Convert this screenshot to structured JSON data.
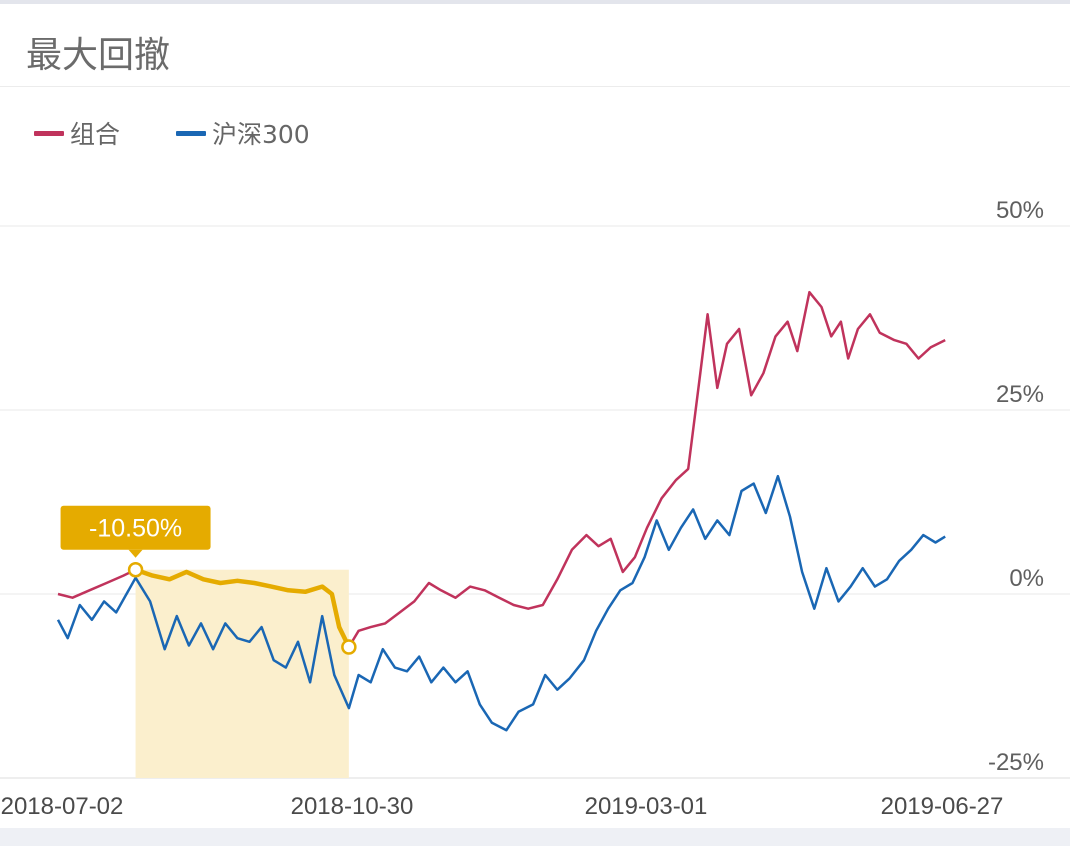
{
  "header": {
    "title": "最大回撤"
  },
  "chart_data": {
    "type": "line",
    "title": "",
    "xlabel": "",
    "ylabel": "",
    "legend_position": "top-left",
    "grid": true,
    "x_ticks": [
      "2018-07-02",
      "2018-10-30",
      "2019-03-01",
      "2019-06-27"
    ],
    "x_range": [
      "2018-07-02",
      "2019-07-05"
    ],
    "y_ticks": [
      {
        "value": 50,
        "label": "50%"
      },
      {
        "value": 25,
        "label": "25%"
      },
      {
        "value": 0,
        "label": "0%"
      },
      {
        "value": -25,
        "label": "-25%"
      }
    ],
    "ylim": [
      -25,
      50
    ],
    "series": [
      {
        "name": "组合",
        "color": "#c0335c",
        "points": [
          [
            "2018-07-02",
            0
          ],
          [
            "2018-07-08",
            -0.5
          ],
          [
            "2018-07-15",
            0.5
          ],
          [
            "2018-07-22",
            1.5
          ],
          [
            "2018-07-29",
            2.5
          ],
          [
            "2018-08-03",
            3.3
          ],
          [
            "2018-08-10",
            2.5
          ],
          [
            "2018-08-17",
            2.0
          ],
          [
            "2018-08-24",
            3.0
          ],
          [
            "2018-08-31",
            2.0
          ],
          [
            "2018-09-07",
            1.5
          ],
          [
            "2018-09-14",
            1.8
          ],
          [
            "2018-09-21",
            1.5
          ],
          [
            "2018-09-28",
            1.0
          ],
          [
            "2018-10-05",
            0.5
          ],
          [
            "2018-10-12",
            0.3
          ],
          [
            "2018-10-19",
            1.0
          ],
          [
            "2018-10-23",
            0
          ],
          [
            "2018-10-26",
            -4.5
          ],
          [
            "2018-10-30",
            -7.2
          ],
          [
            "2018-11-03",
            -5
          ],
          [
            "2018-11-08",
            -4.5
          ],
          [
            "2018-11-14",
            -4.0
          ],
          [
            "2018-11-20",
            -2.5
          ],
          [
            "2018-11-26",
            -1.0
          ],
          [
            "2018-12-02",
            1.5
          ],
          [
            "2018-12-07",
            0.5
          ],
          [
            "2018-12-13",
            -0.5
          ],
          [
            "2018-12-19",
            1.0
          ],
          [
            "2018-12-25",
            0.5
          ],
          [
            "2018-12-31",
            -0.5
          ],
          [
            "2019-01-06",
            -1.5
          ],
          [
            "2019-01-12",
            -2.0
          ],
          [
            "2019-01-18",
            -1.5
          ],
          [
            "2019-01-24",
            2.0
          ],
          [
            "2019-01-30",
            6.0
          ],
          [
            "2019-02-05",
            8.0
          ],
          [
            "2019-02-10",
            6.5
          ],
          [
            "2019-02-15",
            7.5
          ],
          [
            "2019-02-20",
            3.0
          ],
          [
            "2019-02-25",
            5.0
          ],
          [
            "2019-03-02",
            9.0
          ],
          [
            "2019-03-08",
            13.0
          ],
          [
            "2019-03-14",
            15.5
          ],
          [
            "2019-03-19",
            17.0
          ],
          [
            "2019-03-24",
            30.0
          ],
          [
            "2019-03-27",
            38.0
          ],
          [
            "2019-03-31",
            28.0
          ],
          [
            "2019-04-04",
            34.0
          ],
          [
            "2019-04-09",
            36.0
          ],
          [
            "2019-04-14",
            27.0
          ],
          [
            "2019-04-19",
            30.0
          ],
          [
            "2019-04-24",
            35.0
          ],
          [
            "2019-04-29",
            37.0
          ],
          [
            "2019-05-03",
            33.0
          ],
          [
            "2019-05-08",
            41.0
          ],
          [
            "2019-05-13",
            39.0
          ],
          [
            "2019-05-17",
            35.0
          ],
          [
            "2019-05-21",
            37.0
          ],
          [
            "2019-05-24",
            32.0
          ],
          [
            "2019-05-28",
            36.0
          ],
          [
            "2019-06-02",
            38.0
          ],
          [
            "2019-06-06",
            35.5
          ],
          [
            "2019-06-12",
            34.5
          ],
          [
            "2019-06-17",
            34.0
          ],
          [
            "2019-06-22",
            32.0
          ],
          [
            "2019-06-27",
            33.5
          ],
          [
            "2019-07-03",
            34.5
          ]
        ]
      },
      {
        "name": "沪深300",
        "color": "#1a67b4",
        "points": [
          [
            "2018-07-02",
            -3.5
          ],
          [
            "2018-07-06",
            -6.0
          ],
          [
            "2018-07-11",
            -1.5
          ],
          [
            "2018-07-16",
            -3.5
          ],
          [
            "2018-07-21",
            -1.0
          ],
          [
            "2018-07-26",
            -2.5
          ],
          [
            "2018-08-03",
            2.2
          ],
          [
            "2018-08-09",
            -1.0
          ],
          [
            "2018-08-15",
            -7.5
          ],
          [
            "2018-08-20",
            -3.0
          ],
          [
            "2018-08-25",
            -7.0
          ],
          [
            "2018-08-30",
            -4.0
          ],
          [
            "2018-09-04",
            -7.5
          ],
          [
            "2018-09-09",
            -4.0
          ],
          [
            "2018-09-14",
            -6.0
          ],
          [
            "2018-09-19",
            -6.5
          ],
          [
            "2018-09-24",
            -4.5
          ],
          [
            "2018-09-29",
            -9.0
          ],
          [
            "2018-10-04",
            -10.0
          ],
          [
            "2018-10-09",
            -6.5
          ],
          [
            "2018-10-14",
            -12.0
          ],
          [
            "2018-10-19",
            -3.0
          ],
          [
            "2018-10-24",
            -11.0
          ],
          [
            "2018-10-30",
            -15.5
          ],
          [
            "2018-11-03",
            -11.0
          ],
          [
            "2018-11-08",
            -12.0
          ],
          [
            "2018-11-13",
            -7.5
          ],
          [
            "2018-11-18",
            -10.0
          ],
          [
            "2018-11-23",
            -10.5
          ],
          [
            "2018-11-28",
            -8.5
          ],
          [
            "2018-12-03",
            -12.0
          ],
          [
            "2018-12-08",
            -10.0
          ],
          [
            "2018-12-13",
            -12.0
          ],
          [
            "2018-12-18",
            -10.5
          ],
          [
            "2018-12-23",
            -15.0
          ],
          [
            "2018-12-28",
            -17.5
          ],
          [
            "2019-01-03",
            -18.5
          ],
          [
            "2019-01-08",
            -16.0
          ],
          [
            "2019-01-14",
            -15.0
          ],
          [
            "2019-01-19",
            -11.0
          ],
          [
            "2019-01-24",
            -13.0
          ],
          [
            "2019-01-29",
            -11.5
          ],
          [
            "2019-02-04",
            -9.0
          ],
          [
            "2019-02-09",
            -5.0
          ],
          [
            "2019-02-14",
            -2.0
          ],
          [
            "2019-02-19",
            0.5
          ],
          [
            "2019-02-24",
            1.5
          ],
          [
            "2019-03-01",
            5.0
          ],
          [
            "2019-03-06",
            10.0
          ],
          [
            "2019-03-11",
            6.0
          ],
          [
            "2019-03-16",
            9.0
          ],
          [
            "2019-03-21",
            11.5
          ],
          [
            "2019-03-26",
            7.5
          ],
          [
            "2019-03-31",
            10.0
          ],
          [
            "2019-04-05",
            8.0
          ],
          [
            "2019-04-10",
            14.0
          ],
          [
            "2019-04-15",
            15.0
          ],
          [
            "2019-04-20",
            11.0
          ],
          [
            "2019-04-25",
            16.0
          ],
          [
            "2019-04-30",
            10.5
          ],
          [
            "2019-05-05",
            3.0
          ],
          [
            "2019-05-10",
            -2.0
          ],
          [
            "2019-05-15",
            3.5
          ],
          [
            "2019-05-20",
            -1.0
          ],
          [
            "2019-05-25",
            1.0
          ],
          [
            "2019-05-30",
            3.5
          ],
          [
            "2019-06-04",
            1.0
          ],
          [
            "2019-06-09",
            2.0
          ],
          [
            "2019-06-14",
            4.5
          ],
          [
            "2019-06-19",
            6.0
          ],
          [
            "2019-06-24",
            8.0
          ],
          [
            "2019-06-29",
            7.0
          ],
          [
            "2019-07-03",
            7.8
          ]
        ]
      }
    ],
    "drawdown": {
      "label": "-10.50%",
      "value": -10.5,
      "start_date": "2018-08-03",
      "end_date": "2018-10-30",
      "series": "组合",
      "color": "#e5ab00",
      "fill_color": "#fbefcd"
    }
  }
}
